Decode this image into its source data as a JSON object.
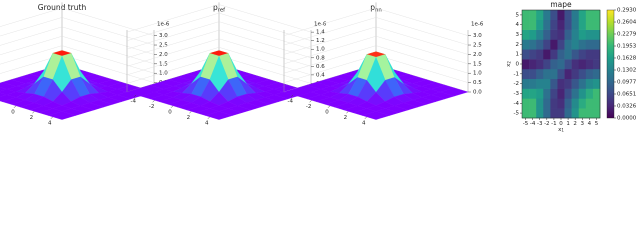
{
  "chart_data": [
    {
      "type": "surface3d",
      "title": "Ground truth",
      "cmap": "rainbow",
      "x": [
        -4,
        -3,
        -2,
        -1,
        0,
        1,
        2,
        3,
        4
      ],
      "y": [
        -4,
        -3,
        -2,
        -1,
        0,
        1,
        2,
        3,
        4
      ],
      "z": [
        [
          0,
          0,
          0,
          0,
          0,
          0,
          0,
          0,
          0
        ],
        [
          0,
          0,
          0,
          0.02,
          0.04,
          0.02,
          0,
          0,
          0
        ],
        [
          0,
          0,
          0.06,
          0.26,
          0.43,
          0.26,
          0.06,
          0,
          0
        ],
        [
          0,
          0.02,
          0.26,
          1.18,
          1.94,
          1.18,
          0.26,
          0.02,
          0
        ],
        [
          0,
          0.04,
          0.43,
          1.94,
          3.2,
          1.94,
          0.43,
          0.04,
          0
        ],
        [
          0,
          0.02,
          0.26,
          1.18,
          1.94,
          1.18,
          0.26,
          0.02,
          0
        ],
        [
          0,
          0,
          0.06,
          0.26,
          0.43,
          0.26,
          0.06,
          0,
          0
        ],
        [
          0,
          0,
          0,
          0.02,
          0.04,
          0.02,
          0,
          0,
          0
        ],
        [
          0,
          0,
          0,
          0,
          0,
          0,
          0,
          0,
          0
        ]
      ],
      "xlim": [
        -5,
        5
      ],
      "ylim": [
        -5,
        5
      ],
      "xticks": [
        -4,
        -2,
        0,
        2,
        4
      ],
      "zlim": [
        0,
        3.3
      ],
      "zticks": [
        {
          "value": 0,
          "label": "0.0"
        },
        0.5,
        {
          "value": 1,
          "label": "1.0"
        },
        1.5,
        {
          "value": 2,
          "label": "2.0"
        },
        2.5,
        {
          "value": 3,
          "label": "3.0"
        }
      ],
      "offset_label": "1e-6"
    },
    {
      "type": "surface3d",
      "title": "p",
      "title_subscript": "ref",
      "cmap": "rainbow",
      "x": [
        -4,
        -3,
        -2,
        -1,
        0,
        1,
        2,
        3,
        4
      ],
      "y": [
        -4,
        -3,
        -2,
        -1,
        0,
        1,
        2,
        3,
        4
      ],
      "z": [
        [
          0,
          0,
          0,
          0,
          0,
          0,
          0,
          0,
          0
        ],
        [
          0,
          0,
          0,
          0.01,
          0.02,
          0.01,
          0,
          0,
          0
        ],
        [
          0,
          0,
          0.03,
          0.11,
          0.19,
          0.11,
          0.03,
          0,
          0
        ],
        [
          0,
          0.01,
          0.11,
          0.52,
          0.85,
          0.52,
          0.11,
          0.01,
          0
        ],
        [
          0,
          0.02,
          0.19,
          0.85,
          1.4,
          0.85,
          0.19,
          0.02,
          0
        ],
        [
          0,
          0.01,
          0.11,
          0.52,
          0.85,
          0.52,
          0.11,
          0.01,
          0
        ],
        [
          0,
          0,
          0.03,
          0.11,
          0.19,
          0.11,
          0.03,
          0,
          0
        ],
        [
          0,
          0,
          0,
          0.01,
          0.02,
          0.01,
          0,
          0,
          0
        ],
        [
          0,
          0,
          0,
          0,
          0,
          0,
          0,
          0,
          0
        ]
      ],
      "xlim": [
        -5,
        5
      ],
      "ylim": [
        -5,
        5
      ],
      "xticks": [
        -4,
        -2,
        0,
        2,
        4
      ],
      "zlim": [
        0,
        1.45
      ],
      "zticks": [
        0.2,
        0.4,
        0.6,
        0.8,
        {
          "value": 1,
          "label": "1.0"
        },
        1.2,
        1.4
      ],
      "offset_label": "1e-6"
    },
    {
      "type": "surface3d",
      "title": "p",
      "title_subscript": "nn",
      "cmap": "rainbow",
      "x": [
        -4,
        -3,
        -2,
        -1,
        0,
        1,
        2,
        3,
        4
      ],
      "y": [
        -4,
        -3,
        -2,
        -1,
        0,
        1,
        2,
        3,
        4
      ],
      "z": [
        [
          0,
          0,
          0,
          0,
          0,
          0,
          0,
          0,
          0
        ],
        [
          0,
          0,
          0,
          0.02,
          0.04,
          0.02,
          0,
          0,
          0
        ],
        [
          0,
          0,
          0.06,
          0.25,
          0.42,
          0.25,
          0.06,
          0,
          0
        ],
        [
          0,
          0.02,
          0.25,
          1.14,
          1.88,
          1.14,
          0.25,
          0.02,
          0
        ],
        [
          0,
          0.04,
          0.42,
          1.88,
          3.1,
          1.88,
          0.42,
          0.04,
          0
        ],
        [
          0,
          0.02,
          0.25,
          1.14,
          1.88,
          1.14,
          0.25,
          0.02,
          0
        ],
        [
          0,
          0,
          0.06,
          0.25,
          0.42,
          0.25,
          0.06,
          0,
          0
        ],
        [
          0,
          0,
          0,
          0.02,
          0.04,
          0.02,
          0,
          0,
          0
        ],
        [
          0,
          0,
          0,
          0,
          0,
          0,
          0,
          0,
          0
        ]
      ],
      "xlim": [
        -5,
        5
      ],
      "ylim": [
        -5,
        5
      ],
      "xticks": [
        -4,
        -2,
        0,
        2,
        4
      ],
      "zlim": [
        0,
        3.3
      ],
      "zticks": [
        {
          "value": 0,
          "label": "0.0"
        },
        0.5,
        {
          "value": 1,
          "label": "1.0"
        },
        1.5,
        {
          "value": 2,
          "label": "2.0"
        },
        2.5,
        {
          "value": 3,
          "label": "3.0"
        }
      ],
      "offset_label": "1e-6"
    },
    {
      "type": "heatmap",
      "title": "mape",
      "cmap": "viridis",
      "xlabel": "x",
      "xlabel_subscript": "1",
      "ylabel": "x",
      "ylabel_subscript": "2",
      "x": [
        -5,
        -4,
        -3,
        -2,
        -1,
        0,
        1,
        2,
        3,
        4,
        5
      ],
      "y": [
        -5,
        -4,
        -3,
        -2,
        -1,
        0,
        1,
        2,
        3,
        4,
        5
      ],
      "z": [
        [
          0.2,
          0.2,
          0.15,
          0.1,
          0.05,
          0.05,
          0.1,
          0.15,
          0.2,
          0.2,
          0.2
        ],
        [
          0.2,
          0.2,
          0.15,
          0.1,
          0.05,
          0.04,
          0.09,
          0.14,
          0.18,
          0.2,
          0.2
        ],
        [
          0.17,
          0.17,
          0.16,
          0.11,
          0.06,
          0.03,
          0.07,
          0.11,
          0.15,
          0.18,
          0.2
        ],
        [
          0.12,
          0.12,
          0.13,
          0.13,
          0.08,
          0.04,
          0.05,
          0.08,
          0.11,
          0.14,
          0.15
        ],
        [
          0.07,
          0.07,
          0.09,
          0.11,
          0.11,
          0.07,
          0.03,
          0.05,
          0.07,
          0.09,
          0.1
        ],
        [
          0.02,
          0.03,
          0.04,
          0.06,
          0.09,
          0.1,
          0.07,
          0.04,
          0.03,
          0.04,
          0.05
        ],
        [
          0.07,
          0.06,
          0.05,
          0.02,
          0.05,
          0.09,
          0.11,
          0.08,
          0.06,
          0.05,
          0.05
        ],
        [
          0.12,
          0.11,
          0.09,
          0.06,
          0.02,
          0.06,
          0.11,
          0.13,
          0.11,
          0.1,
          0.1
        ],
        [
          0.17,
          0.16,
          0.13,
          0.09,
          0.05,
          0.04,
          0.09,
          0.13,
          0.16,
          0.15,
          0.15
        ],
        [
          0.2,
          0.2,
          0.16,
          0.11,
          0.06,
          0.03,
          0.07,
          0.12,
          0.17,
          0.2,
          0.2
        ],
        [
          0.2,
          0.2,
          0.17,
          0.12,
          0.07,
          0.02,
          0.07,
          0.12,
          0.17,
          0.2,
          0.2
        ]
      ],
      "xlim": [
        -5.5,
        5.5
      ],
      "ylim": [
        -5.5,
        5.5
      ],
      "xticks": [
        -5,
        -4,
        -3,
        -2,
        -1,
        0,
        1,
        2,
        3,
        4,
        5
      ],
      "yticks": [
        -5,
        -4,
        -3,
        -2,
        -1,
        0,
        1,
        2,
        3,
        4,
        5
      ],
      "clim": [
        0,
        0.293
      ],
      "cticks": [
        {
          "value": 0,
          "label": "0.0000"
        },
        0.0326,
        0.0651,
        0.0977,
        0.1302,
        0.1628,
        0.1953,
        0.2279,
        0.2604,
        {
          "value": 0.293,
          "label": "0.2930"
        }
      ]
    }
  ]
}
